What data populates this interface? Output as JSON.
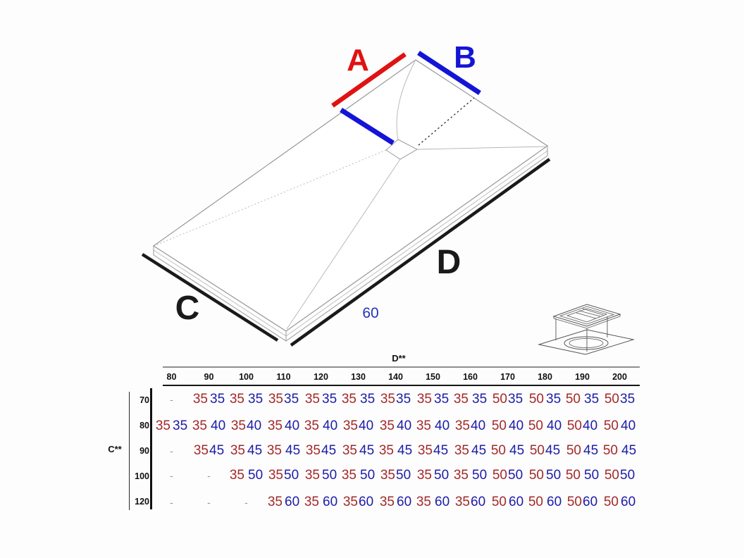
{
  "diagram": {
    "label_a": "A",
    "label_b": "B",
    "label_c": "C",
    "label_d": "D",
    "drain_offset_label": "60",
    "icons": {
      "drain": "drain-grate-icon"
    },
    "colors": {
      "accent_red": "#e01212",
      "accent_blue": "#1414d6",
      "dimension_black": "#1a1a1a",
      "drawing_line": "#909090"
    }
  },
  "table": {
    "column_axis": "D**",
    "row_axis": "C**",
    "value_colors": {
      "first": "#a32828",
      "second": "#1c1ca8"
    },
    "columns": [
      "80",
      "90",
      "100",
      "110",
      "120",
      "130",
      "140",
      "150",
      "160",
      "170",
      "180",
      "190",
      "200"
    ],
    "rows": [
      {
        "label": "70",
        "cells": [
          "-",
          [
            "35",
            "35"
          ],
          [
            "35",
            "35"
          ],
          [
            "35",
            "35"
          ],
          [
            "35",
            "35"
          ],
          [
            "35",
            "35"
          ],
          [
            "35",
            "35"
          ],
          [
            "35",
            "35"
          ],
          [
            "35",
            "35"
          ],
          [
            "50",
            "35"
          ],
          [
            "50",
            "35"
          ],
          [
            "50",
            "35"
          ],
          [
            "50",
            "35"
          ]
        ]
      },
      {
        "label": "80",
        "cells": [
          [
            "35",
            "35"
          ],
          [
            "35",
            "40"
          ],
          [
            "35",
            "40"
          ],
          [
            "35",
            "40"
          ],
          [
            "35",
            "40"
          ],
          [
            "35",
            "40"
          ],
          [
            "35",
            "40"
          ],
          [
            "35",
            "40"
          ],
          [
            "35",
            "40"
          ],
          [
            "50",
            "40"
          ],
          [
            "50",
            "40"
          ],
          [
            "50",
            "40"
          ],
          [
            "50",
            "40"
          ]
        ]
      },
      {
        "label": "90",
        "cells": [
          "-",
          [
            "35",
            "45"
          ],
          [
            "35",
            "45"
          ],
          [
            "35",
            "45"
          ],
          [
            "35",
            "45"
          ],
          [
            "35",
            "45"
          ],
          [
            "35",
            "45"
          ],
          [
            "35",
            "45"
          ],
          [
            "35",
            "45"
          ],
          [
            "50",
            "45"
          ],
          [
            "50",
            "45"
          ],
          [
            "50",
            "45"
          ],
          [
            "50",
            "45"
          ]
        ]
      },
      {
        "label": "100",
        "cells": [
          "-",
          "-",
          [
            "35",
            "50"
          ],
          [
            "35",
            "50"
          ],
          [
            "35",
            "50"
          ],
          [
            "35",
            "50"
          ],
          [
            "35",
            "50"
          ],
          [
            "35",
            "50"
          ],
          [
            "35",
            "50"
          ],
          [
            "50",
            "50"
          ],
          [
            "50",
            "50"
          ],
          [
            "50",
            "50"
          ],
          [
            "50",
            "50"
          ]
        ]
      },
      {
        "label": "120",
        "cells": [
          "-",
          "-",
          "-",
          [
            "35",
            "60"
          ],
          [
            "35",
            "60"
          ],
          [
            "35",
            "60"
          ],
          [
            "35",
            "60"
          ],
          [
            "35",
            "60"
          ],
          [
            "35",
            "60"
          ],
          [
            "50",
            "60"
          ],
          [
            "50",
            "60"
          ],
          [
            "50",
            "60"
          ],
          [
            "50",
            "60"
          ]
        ]
      }
    ]
  }
}
